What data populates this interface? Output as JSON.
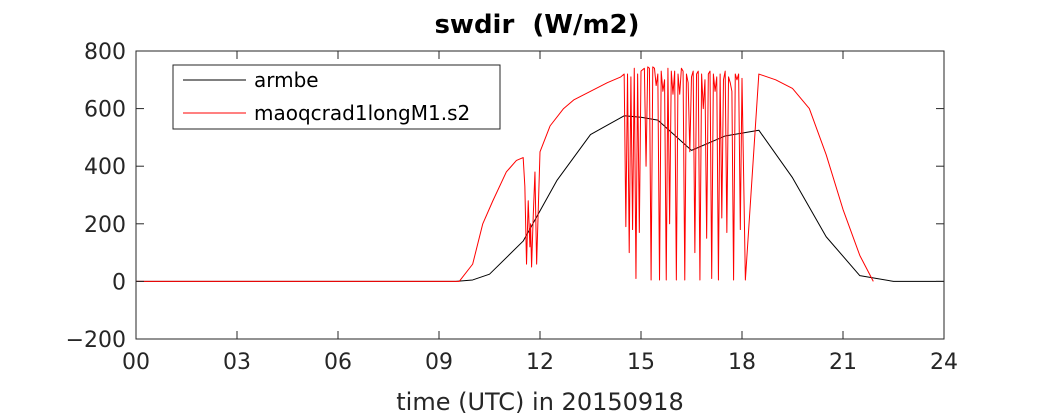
{
  "chart_data": {
    "type": "line",
    "title": "swdir  (W/m2)",
    "xlabel": "time (UTC) in 20150918",
    "ylabel": "",
    "xlim": [
      0,
      24
    ],
    "ylim": [
      -200,
      800
    ],
    "xticks": [
      0,
      3,
      6,
      9,
      12,
      15,
      18,
      21,
      24
    ],
    "xtick_labels": [
      "00",
      "03",
      "06",
      "09",
      "12",
      "15",
      "18",
      "21",
      "24"
    ],
    "yticks": [
      -200,
      0,
      200,
      400,
      600,
      800
    ],
    "ytick_labels": [
      "−200",
      "0",
      "200",
      "400",
      "600",
      "800"
    ],
    "grid": false,
    "legend_position": "top-left",
    "series": [
      {
        "name": "armbe",
        "color": "#000000",
        "x": [
          0,
          1,
          2,
          3,
          4,
          5,
          6,
          7,
          8,
          9,
          9.5,
          10,
          10.5,
          11.5,
          12.5,
          13.5,
          14.5,
          15,
          15.5,
          16.5,
          17.5,
          18.5,
          19.5,
          20.5,
          21.5,
          22.5,
          23,
          24
        ],
        "y": [
          0,
          0,
          0,
          0,
          0,
          0,
          0,
          0,
          0,
          0,
          0,
          5,
          25,
          140,
          350,
          510,
          575,
          570,
          560,
          455,
          505,
          525,
          360,
          155,
          20,
          0,
          0,
          0
        ]
      },
      {
        "name": "maoqcrad1longM1.s2",
        "color": "#ff0000",
        "x": [
          0,
          9.6,
          10.0,
          10.3,
          10.6,
          11.0,
          11.3,
          11.5,
          11.55,
          11.6,
          11.65,
          11.7,
          11.72,
          11.75,
          11.8,
          11.85,
          11.9,
          12.0,
          12.3,
          12.7,
          13.0,
          13.5,
          14.0,
          14.4,
          14.5,
          14.55,
          14.6,
          14.65,
          14.7,
          14.75,
          14.8,
          14.85,
          14.9,
          14.95,
          15.0,
          15.1,
          15.15,
          15.2,
          15.25,
          15.3,
          15.35,
          15.4,
          15.45,
          15.5,
          15.55,
          15.6,
          15.65,
          15.7,
          15.75,
          15.8,
          15.85,
          15.9,
          15.95,
          16.0,
          16.05,
          16.1,
          16.15,
          16.2,
          16.25,
          16.3,
          16.35,
          16.4,
          16.45,
          16.5,
          16.55,
          16.6,
          16.65,
          16.7,
          16.75,
          16.8,
          16.85,
          16.9,
          16.95,
          17.0,
          17.05,
          17.1,
          17.15,
          17.2,
          17.25,
          17.3,
          17.35,
          17.4,
          17.45,
          17.5,
          17.55,
          17.6,
          17.65,
          17.7,
          17.75,
          17.8,
          17.85,
          17.9,
          17.95,
          18.0,
          18.1,
          18.5,
          19.0,
          19.5,
          20.0,
          20.5,
          21.0,
          21.5,
          21.9
        ],
        "y": [
          0,
          0,
          60,
          200,
          280,
          380,
          420,
          430,
          330,
          60,
          280,
          120,
          200,
          50,
          230,
          380,
          60,
          450,
          540,
          600,
          630,
          660,
          690,
          710,
          720,
          190,
          720,
          100,
          710,
          180,
          740,
          10,
          720,
          170,
          730,
          740,
          400,
          745,
          740,
          5,
          745,
          740,
          680,
          720,
          5,
          730,
          660,
          700,
          5,
          740,
          200,
          730,
          650,
          730,
          5,
          720,
          650,
          740,
          730,
          5,
          720,
          690,
          450,
          710,
          730,
          100,
          720,
          730,
          5,
          720,
          600,
          700,
          150,
          720,
          730,
          10,
          720,
          660,
          710,
          5,
          720,
          220,
          700,
          730,
          170,
          710,
          690,
          660,
          5,
          720,
          700,
          720,
          180,
          705,
          5,
          720,
          700,
          670,
          600,
          440,
          250,
          90,
          0
        ]
      }
    ]
  }
}
